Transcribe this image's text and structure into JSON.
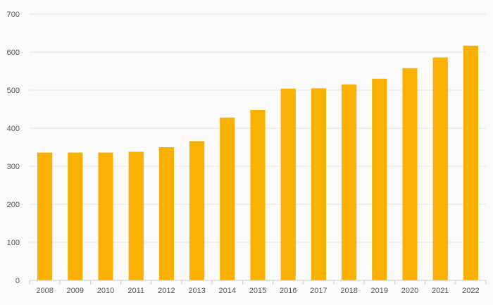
{
  "chart_data": {
    "type": "bar",
    "title": "",
    "xlabel": "",
    "ylabel": "",
    "categories": [
      "2008",
      "2009",
      "2010",
      "2011",
      "2012",
      "2013",
      "2014",
      "2015",
      "2016",
      "2017",
      "2018",
      "2019",
      "2020",
      "2021",
      "2022"
    ],
    "values": [
      336,
      336,
      336,
      338,
      350,
      366,
      428,
      448,
      504,
      505,
      515,
      530,
      558,
      586,
      617
    ],
    "ylim": [
      0,
      700
    ],
    "yticks": [
      "0",
      "100",
      "200",
      "300",
      "400",
      "500",
      "600",
      "700"
    ],
    "grid": true,
    "bar_color": "#f9b000"
  }
}
